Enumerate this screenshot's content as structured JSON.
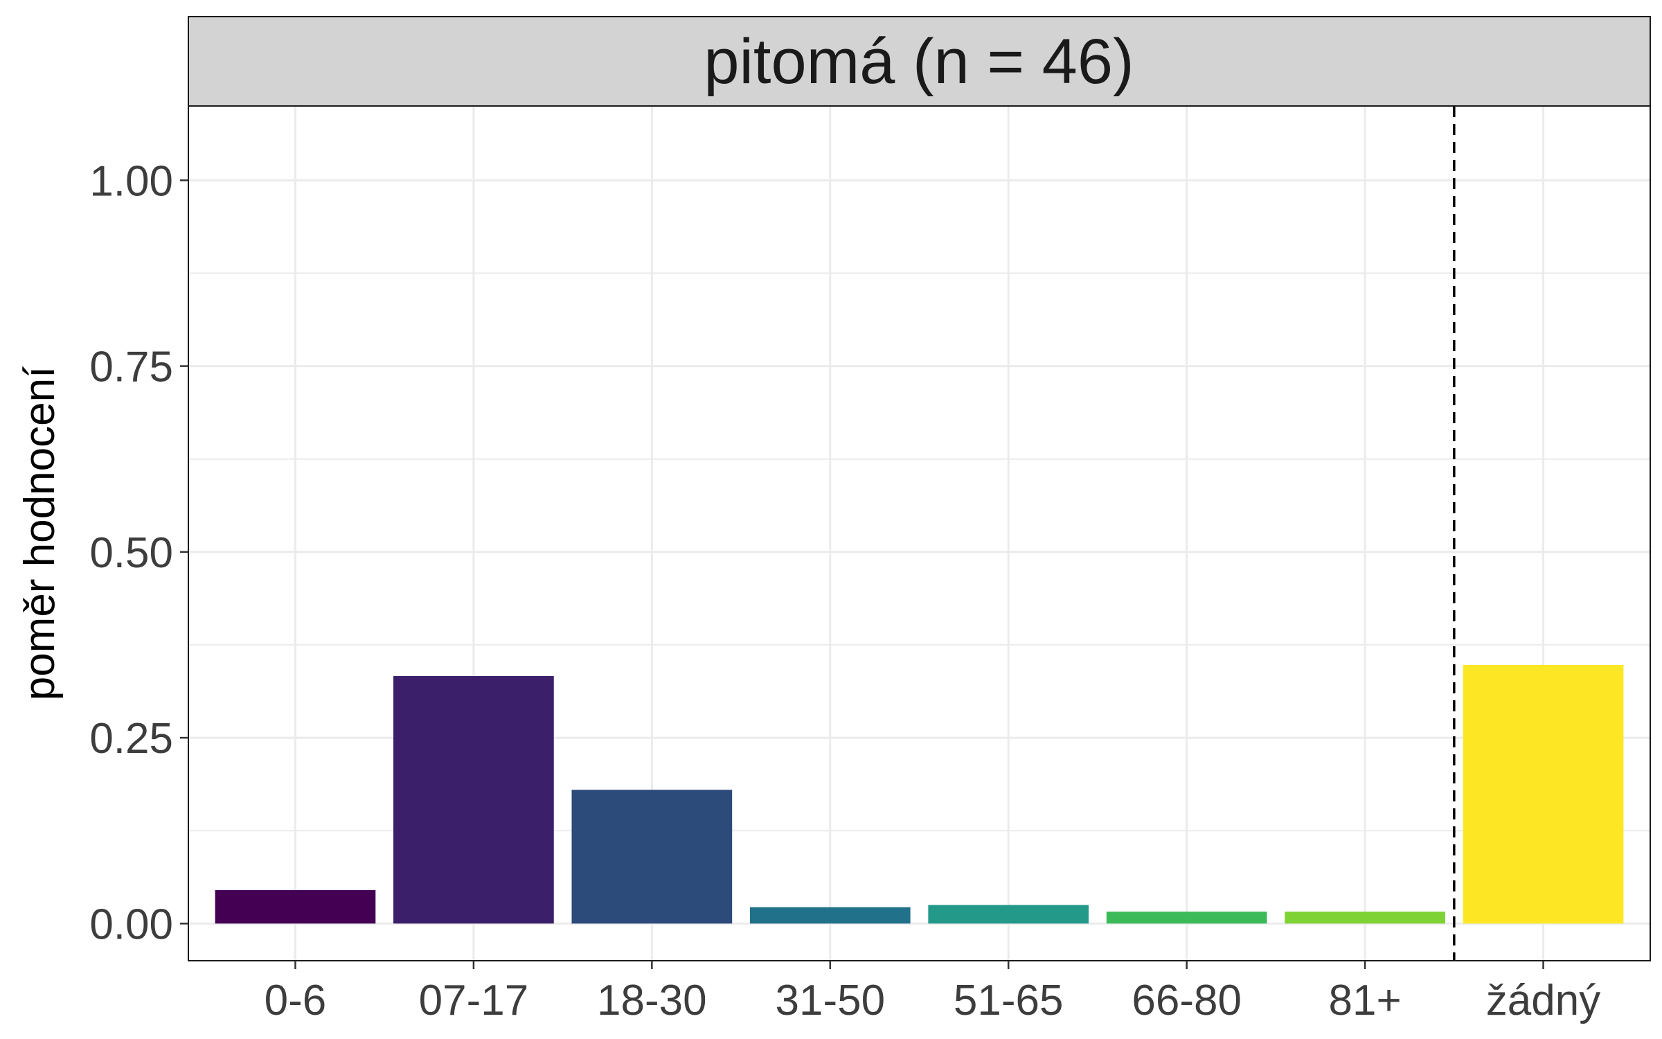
{
  "chart_data": {
    "type": "bar",
    "facet_title": "pitomá (n = 46)",
    "xlabel": "",
    "ylabel": "poměr hodnocení",
    "categories": [
      "0-6",
      "07-17",
      "18-30",
      "31-50",
      "51-65",
      "66-80",
      "81+",
      "žádný"
    ],
    "values": [
      0.045,
      0.333,
      0.18,
      0.022,
      0.025,
      0.016,
      0.016,
      0.348
    ],
    "colors": [
      "#440154",
      "#3B1F6B",
      "#2C4A7A",
      "#21718A",
      "#23998A",
      "#3CBA5A",
      "#7FD234",
      "#FDE725"
    ],
    "ylim": [
      -0.05,
      1.1
    ],
    "yticks": [
      0.0,
      0.25,
      0.5,
      0.75,
      1.0
    ],
    "ytick_labels": [
      "0.00",
      "0.25",
      "0.50",
      "0.75",
      "1.00"
    ],
    "separator_after_category": "81+",
    "grid": true,
    "legend": "none"
  }
}
